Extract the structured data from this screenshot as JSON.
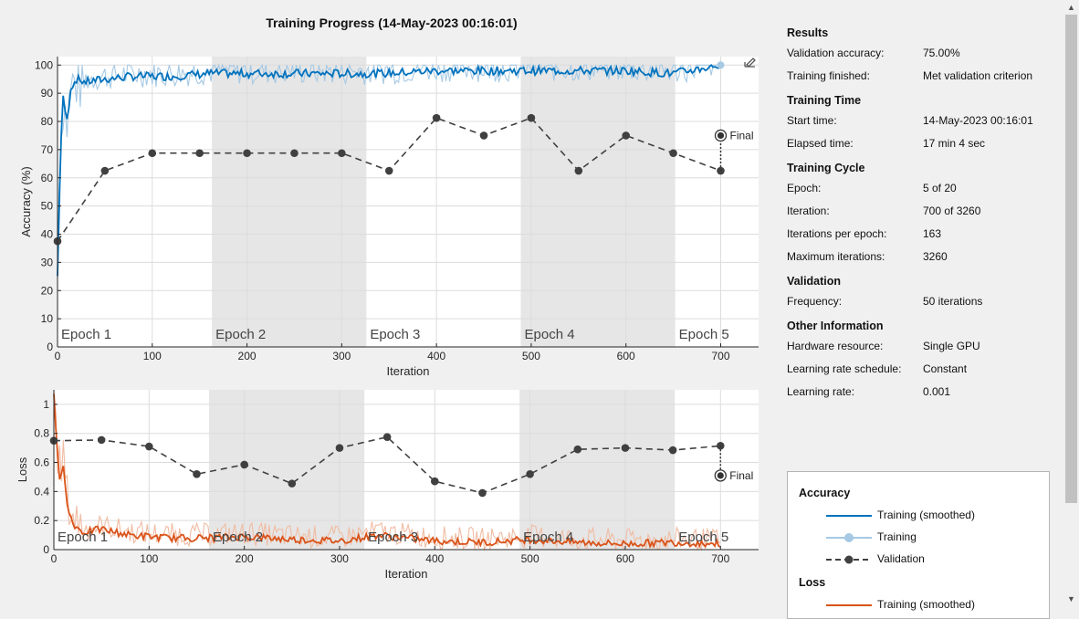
{
  "title": "Training Progress (14-May-2023 00:16:01)",
  "colors": {
    "acc_smooth": "#0072bd",
    "acc_raw": "#a6c9e4",
    "loss_smooth": "#d95319",
    "loss_raw": "#f0bca4",
    "validation": "#404040",
    "epoch_shade": "#e6e6e6"
  },
  "icons": {
    "export": "export-plot-icon",
    "final_marker": "final-marker-icon"
  },
  "chart_data": [
    {
      "type": "line",
      "name": "accuracy-plot",
      "xlabel": "Iteration",
      "ylabel": "Accuracy (%)",
      "xlim": [
        0,
        740
      ],
      "ylim": [
        0,
        103
      ],
      "xticks": [
        "0",
        "100",
        "200",
        "300",
        "400",
        "500",
        "600",
        "700"
      ],
      "yticks": [
        "0",
        "10",
        "20",
        "30",
        "40",
        "50",
        "60",
        "70",
        "80",
        "90",
        "100"
      ],
      "epoch_labels": [
        "Epoch 1",
        "Epoch 2",
        "Epoch 3",
        "Epoch 4",
        "Epoch 5"
      ],
      "epoch_bounds": [
        0,
        163,
        326,
        489,
        652,
        700
      ],
      "final_label": "Final",
      "final_value": 75.0,
      "validation": {
        "name": "Validation",
        "x": [
          0,
          50,
          100,
          150,
          200,
          250,
          300,
          350,
          400,
          450,
          500,
          550,
          600,
          650,
          700
        ],
        "y": [
          37.5,
          62.5,
          68.75,
          68.75,
          68.75,
          68.75,
          68.75,
          62.5,
          81.25,
          75,
          81.25,
          62.5,
          75,
          68.75,
          62.5
        ]
      },
      "training_smoothed_keypoints": {
        "x": [
          0,
          3,
          6,
          10,
          14,
          20,
          30,
          50,
          80,
          120,
          160,
          200,
          250,
          300,
          340,
          400,
          450,
          500,
          550,
          600,
          650,
          700
        ],
        "y": [
          25,
          70,
          88,
          80,
          92,
          95,
          94,
          95,
          96,
          96,
          97,
          97,
          97,
          97,
          97,
          98,
          98,
          98,
          98,
          98,
          97,
          100
        ]
      },
      "training_endpoint": 100
    },
    {
      "type": "line",
      "name": "loss-plot",
      "xlabel": "Iteration",
      "ylabel": "Loss",
      "xlim": [
        0,
        740
      ],
      "ylim": [
        0,
        1.1
      ],
      "xticks": [
        "0",
        "100",
        "200",
        "300",
        "400",
        "500",
        "600",
        "700"
      ],
      "yticks": [
        "0",
        "0.2",
        "0.4",
        "0.6",
        "0.8",
        "1"
      ],
      "epoch_labels": [
        "Epoch 1",
        "Epoch 2",
        "Epoch 3",
        "Epoch 4",
        "Epoch 5"
      ],
      "epoch_bounds": [
        0,
        163,
        326,
        489,
        652,
        700
      ],
      "final_label": "Final",
      "final_value": 0.51,
      "validation": {
        "name": "Validation",
        "x": [
          0,
          50,
          100,
          150,
          200,
          250,
          300,
          350,
          400,
          450,
          500,
          550,
          600,
          650,
          700
        ],
        "y": [
          0.75,
          0.755,
          0.71,
          0.52,
          0.585,
          0.455,
          0.7,
          0.775,
          0.47,
          0.39,
          0.52,
          0.69,
          0.7,
          0.685,
          0.715
        ]
      },
      "training_smoothed_keypoints": {
        "x": [
          0,
          3,
          6,
          10,
          14,
          20,
          30,
          50,
          80,
          120,
          160,
          200,
          250,
          300,
          340,
          400,
          450,
          500,
          550,
          600,
          650,
          700
        ],
        "y": [
          1.05,
          0.7,
          0.5,
          0.6,
          0.3,
          0.18,
          0.12,
          0.14,
          0.1,
          0.08,
          0.08,
          0.09,
          0.07,
          0.06,
          0.1,
          0.06,
          0.05,
          0.07,
          0.05,
          0.04,
          0.05,
          0.04
        ]
      }
    }
  ],
  "results": {
    "heading": "Results",
    "validation_accuracy_label": "Validation accuracy:",
    "validation_accuracy": "75.00%",
    "training_finished_label": "Training finished:",
    "training_finished": "Met validation criterion"
  },
  "training_time": {
    "heading": "Training Time",
    "start_time_label": "Start time:",
    "start_time": "14-May-2023 00:16:01",
    "elapsed_time_label": "Elapsed time:",
    "elapsed_time": "17 min 4 sec"
  },
  "training_cycle": {
    "heading": "Training Cycle",
    "epoch_label": "Epoch:",
    "epoch": "5 of 20",
    "iteration_label": "Iteration:",
    "iteration": "700 of 3260",
    "ipe_label": "Iterations per epoch:",
    "ipe": "163",
    "max_iter_label": "Maximum iterations:",
    "max_iter": "3260"
  },
  "validation_info": {
    "heading": "Validation",
    "frequency_label": "Frequency:",
    "frequency": "50 iterations"
  },
  "other": {
    "heading": "Other Information",
    "hardware_label": "Hardware resource:",
    "hardware": "Single GPU",
    "lr_schedule_label": "Learning rate schedule:",
    "lr_schedule": "Constant",
    "lr_label": "Learning rate:",
    "lr": "0.001"
  },
  "legend": {
    "accuracy_title": "Accuracy",
    "loss_title": "Loss",
    "training_smoothed": "Training (smoothed)",
    "training": "Training",
    "validation": "Validation"
  }
}
